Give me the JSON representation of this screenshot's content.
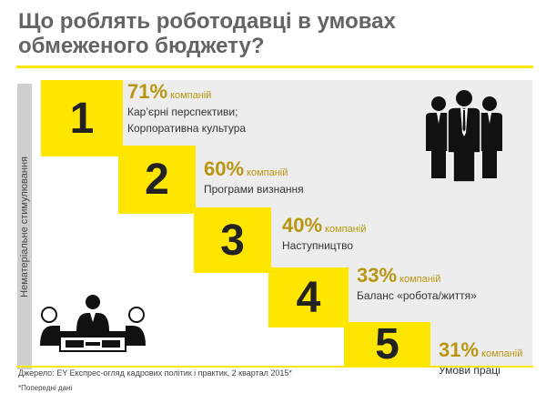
{
  "title": "Що роблять роботодавці в умовах обмеженого бюджету?",
  "side_label": "Нематеріальне стимулювання",
  "steps": [
    {
      "num": "1",
      "pct": "71%",
      "unit": "компаній",
      "desc1": "Кар’єрні перспективи;",
      "desc2": "Корпоративна культура"
    },
    {
      "num": "2",
      "pct": "60%",
      "unit": "компаній",
      "desc1": "Програми визнання",
      "desc2": ""
    },
    {
      "num": "3",
      "pct": "40%",
      "unit": "компаній",
      "desc1": "Наступництво",
      "desc2": ""
    },
    {
      "num": "4",
      "pct": "33%",
      "unit": "компаній",
      "desc1": "Баланс «робота/життя»",
      "desc2": ""
    },
    {
      "num": "5",
      "pct": "31%",
      "unit": "компаній",
      "desc1": "Умови праці",
      "desc2": ""
    }
  ],
  "source": "Джерело: EY Експрес-огляд кадрових політик і практик, 2 квартал 2015*",
  "note": "*Попередні дані",
  "icons": {
    "business_people": "business-people-icon",
    "meeting": "meeting-icon"
  },
  "colors": {
    "accent": "#ffe600",
    "percent": "#b8960f",
    "title": "#646464"
  }
}
